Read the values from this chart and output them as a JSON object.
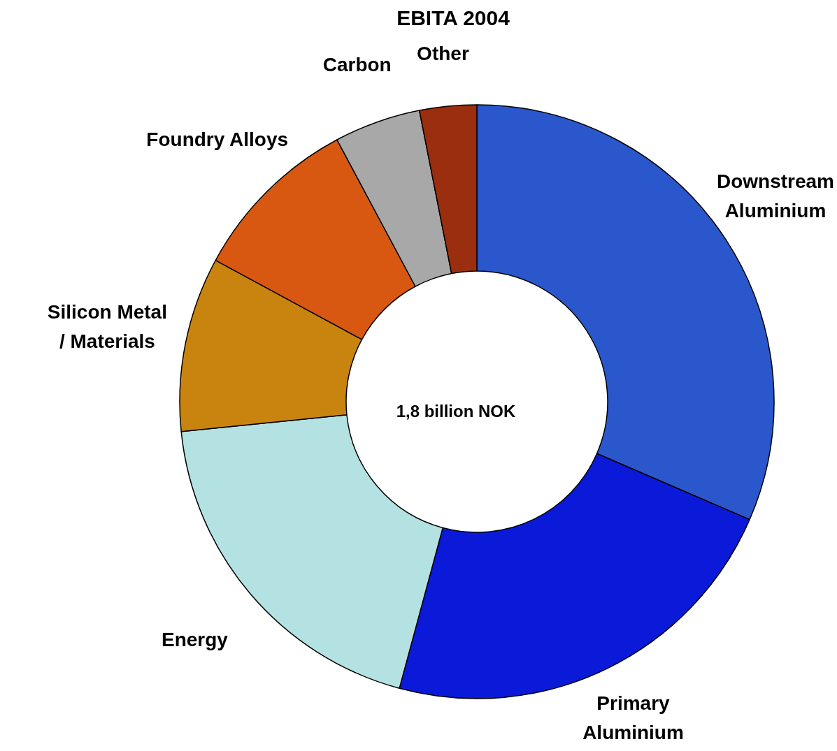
{
  "chart_data": {
    "type": "donut",
    "title": "EBITA 2004",
    "categories": [
      "Downstream Aluminium",
      "Primary Aluminium",
      "Energy",
      "Silicon Metal / Materials",
      "Foundry Alloys",
      "Carbon",
      "Other"
    ],
    "values": [
      31.5,
      22.7,
      19.2,
      9.5,
      9.3,
      4.7,
      3.1
    ],
    "colors": [
      "#2b57cc",
      "#0a1ad8",
      "#b4e2e2",
      "#c98410",
      "#d85812",
      "#a8a8a8",
      "#9a2e0e"
    ],
    "annotations": [
      "1,8 billion NOK"
    ],
    "legend": false
  }
}
